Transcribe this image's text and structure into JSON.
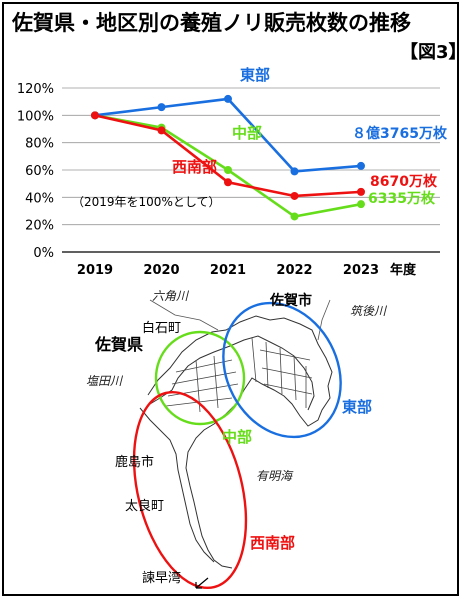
{
  "title": "佐賀県・地区別の養殖ノリ販売枚数の推移",
  "figure_label": "【図3】",
  "colors": {
    "east": "#1a6fe0",
    "middle": "#66dd1a",
    "southwest": "#ee1111"
  },
  "chart_data": {
    "type": "line",
    "categories": [
      "2019",
      "2020",
      "2021",
      "2022",
      "2023"
    ],
    "x_unit": "年度",
    "ylim": [
      0,
      120
    ],
    "yticks": [
      "0%",
      "20%",
      "40%",
      "60%",
      "80%",
      "100%",
      "120%"
    ],
    "grid": true,
    "note": "（2019年を100%として）",
    "series": [
      {
        "name": "東部",
        "color": "#1a6fe0",
        "values": [
          100,
          106,
          112,
          59,
          63
        ],
        "end_label": "８億3765万枚"
      },
      {
        "name": "中部",
        "color": "#66dd1a",
        "values": [
          100,
          91,
          60,
          26,
          35
        ],
        "end_label": "6335万枚"
      },
      {
        "name": "西南部",
        "color": "#ee1111",
        "values": [
          100,
          89,
          51,
          41,
          44
        ],
        "end_label": "8670万枚"
      }
    ]
  },
  "map": {
    "labels": {
      "saga": "佐賀県",
      "shiroishi": "白石町",
      "rokkaku": "六角川",
      "sagashi": "佐賀市",
      "chikugo": "筑後川",
      "shiota": "塩田川",
      "kashima": "鹿島市",
      "tara": "太良町",
      "ariake": "有明海",
      "isahaya": "諫早湾"
    },
    "regions": {
      "east": "東部",
      "middle": "中部",
      "southwest": "西南部"
    }
  }
}
